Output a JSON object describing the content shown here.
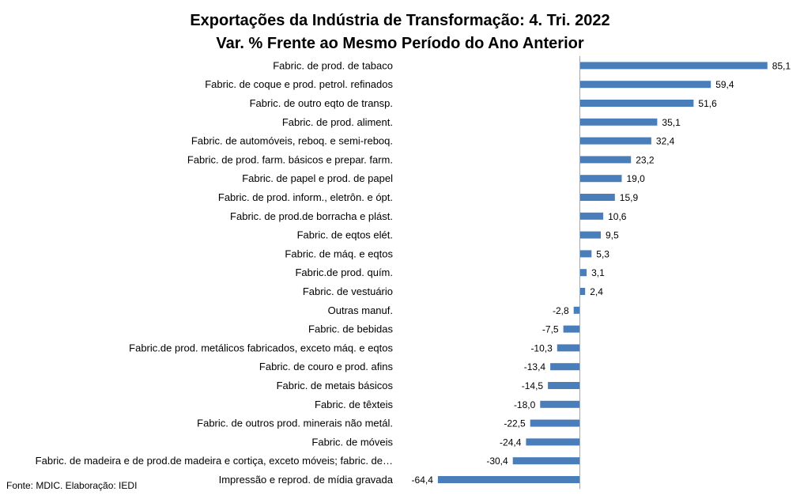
{
  "chart_data": {
    "type": "bar",
    "orientation": "horizontal",
    "title_line1": "Exportações da Indústria de Transformação: 4. Tri. 2022",
    "title_line2": "Var. % Frente ao Mesmo Período do Ano Anterior",
    "source": "Fonte: MDIC. Elaboração: IEDI",
    "bar_color": "#4a7ebb",
    "axis_color": "#a6a6a6",
    "xlim": [
      -64.4,
      85.1
    ],
    "grid": false,
    "legend": "none",
    "categories": [
      "Fabric. de prod. de tabaco",
      "Fabric. de coque e prod. petrol. refinados",
      "Fabric. de outro eqto de transp.",
      "Fabric. de prod. aliment.",
      "Fabric. de automóveis, reboq. e semi-reboq.",
      "Fabric. de prod. farm. básicos e prepar. farm.",
      "Fabric. de papel e prod. de papel",
      "Fabric. de prod. inform., eletrôn. e ópt.",
      "Fabric. de prod.de borracha e plást.",
      "Fabric. de eqtos elét.",
      "Fabric. de máq. e eqtos",
      "Fabric.de prod. quím.",
      "Fabric. de vestuário",
      "Outras manuf.",
      "Fabric. de bebidas",
      "Fabric.de prod. metálicos fabricados, exceto máq. e eqtos",
      "Fabric. de couro e prod. afins",
      "Fabric. de metais básicos",
      "Fabric. de têxteis",
      "Fabric. de outros prod. minerais não metál.",
      "Fabric. de móveis",
      "Fabric. de madeira e de prod.de madeira e cortiça, exceto móveis; fabric. de…",
      "Impressão e reprod. de mídia gravada"
    ],
    "values": [
      85.1,
      59.4,
      51.6,
      35.1,
      32.4,
      23.2,
      19.0,
      15.9,
      10.6,
      9.5,
      5.3,
      3.1,
      2.4,
      -2.8,
      -7.5,
      -10.3,
      -13.4,
      -14.5,
      -18.0,
      -22.5,
      -24.4,
      -30.4,
      -64.4
    ],
    "value_labels": [
      "85,1",
      "59,4",
      "51,6",
      "35,1",
      "32,4",
      "23,2",
      "19,0",
      "15,9",
      "10,6",
      "9,5",
      "5,3",
      "3,1",
      "2,4",
      "-2,8",
      "-7,5",
      "-10,3",
      "-13,4",
      "-14,5",
      "-18,0",
      "-22,5",
      "-24,4",
      "-30,4",
      "-64,4"
    ]
  }
}
